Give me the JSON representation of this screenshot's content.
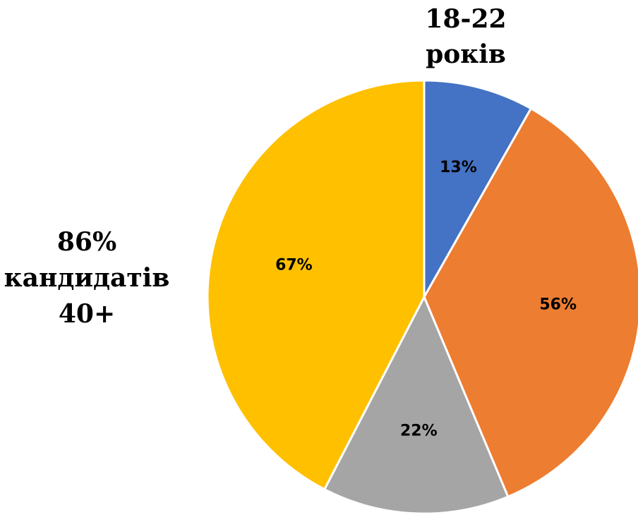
{
  "chart_data": {
    "type": "pie",
    "slices": [
      {
        "label": "13%",
        "value": 8.3,
        "color": "#4472C4"
      },
      {
        "label": "56%",
        "value": 35.9,
        "color": "#ED7D31"
      },
      {
        "label": "22%",
        "value": 14.1,
        "color": "#A5A5A5"
      },
      {
        "label": "67%",
        "value": 42.9,
        "color": "#FFC000"
      }
    ],
    "start_angle": "12 o'clock, clockwise",
    "annotations": {
      "top_right": [
        "18-22",
        "років"
      ],
      "left": [
        "86%",
        "кандидатів",
        "40+"
      ]
    }
  }
}
